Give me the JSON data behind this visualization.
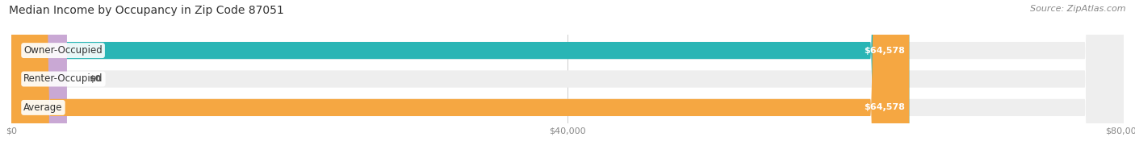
{
  "title": "Median Income by Occupancy in Zip Code 87051",
  "source": "Source: ZipAtlas.com",
  "categories": [
    "Owner-Occupied",
    "Renter-Occupied",
    "Average"
  ],
  "values": [
    64578,
    0,
    64578
  ],
  "bar_colors": [
    "#2ab5b5",
    "#c9a8d4",
    "#f5a742"
  ],
  "value_labels": [
    "$64,578",
    "$0",
    "$64,578"
  ],
  "xmax": 80000,
  "xtick_labels": [
    "$0",
    "$40,000",
    "$80,000"
  ],
  "xtick_vals": [
    0,
    40000,
    80000
  ],
  "title_fontsize": 10,
  "source_fontsize": 8,
  "bar_label_fontsize": 8.5,
  "value_label_fontsize": 8
}
